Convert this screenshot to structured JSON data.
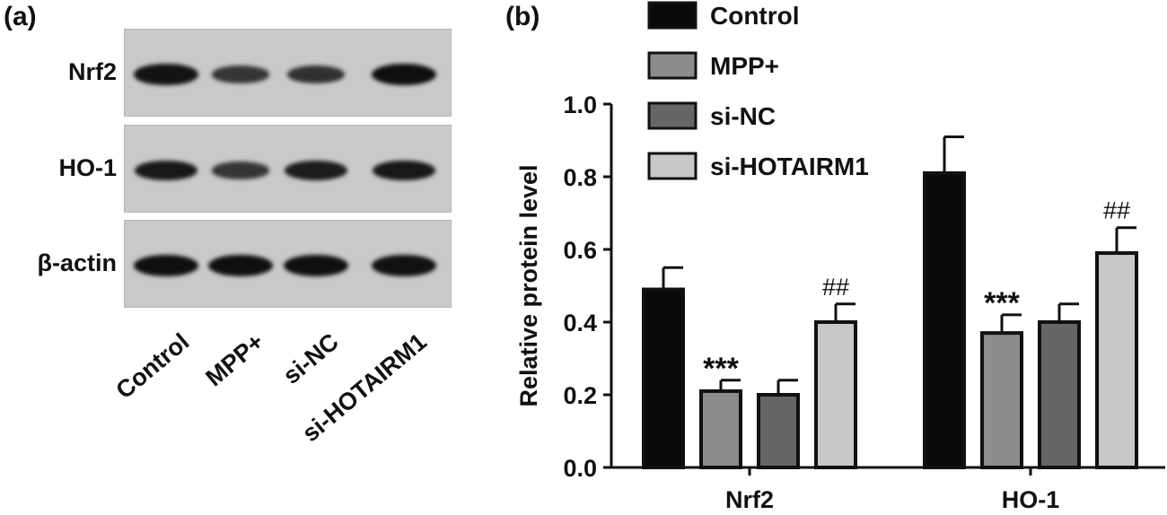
{
  "panel_a": {
    "label": "(a)",
    "rows": [
      "Nrf2",
      "HO-1",
      "β-actin"
    ],
    "lanes": [
      "Control",
      "MPP+",
      "si-NC",
      "si-HOTAIRM1"
    ],
    "band_intensity": [
      [
        0.95,
        0.55,
        0.6,
        1.0
      ],
      [
        0.9,
        0.55,
        0.85,
        0.9
      ],
      [
        1.0,
        1.0,
        1.0,
        0.98
      ]
    ]
  },
  "panel_b": {
    "label": "(b)"
  },
  "chart_data": {
    "type": "bar",
    "categories": [
      "Nrf2",
      "HO-1"
    ],
    "series": [
      {
        "name": "Control",
        "color": "#0a0a0a",
        "values": [
          0.49,
          0.81
        ],
        "errors": [
          0.06,
          0.1
        ],
        "annotations": [
          "",
          ""
        ]
      },
      {
        "name": "MPP+",
        "color": "#8c8c8c",
        "values": [
          0.21,
          0.37
        ],
        "errors": [
          0.03,
          0.05
        ],
        "annotations": [
          "***",
          "***"
        ]
      },
      {
        "name": "si-NC",
        "color": "#666666",
        "values": [
          0.2,
          0.4
        ],
        "errors": [
          0.04,
          0.05
        ],
        "annotations": [
          "",
          ""
        ]
      },
      {
        "name": "si-HOTAIRM1",
        "color": "#c8c8c8",
        "values": [
          0.4,
          0.59
        ],
        "errors": [
          0.05,
          0.07
        ],
        "annotations": [
          "##",
          "##"
        ]
      }
    ],
    "ylabel": "Relative protein level",
    "xlabel": "",
    "ylim": [
      0,
      1.0
    ],
    "yticks": [
      "0.0",
      "0.2",
      "0.4",
      "0.6",
      "0.8",
      "1.0"
    ],
    "legend_position": "top-left"
  }
}
